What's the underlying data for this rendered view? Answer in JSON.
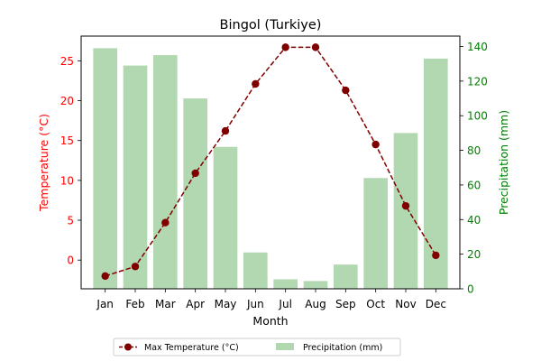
{
  "chart_data": {
    "type": "bar+line",
    "title": "Bingol (Turkiye)",
    "xlabel": "Month",
    "categories": [
      "Jan",
      "Feb",
      "Mar",
      "Apr",
      "May",
      "Jun",
      "Jul",
      "Aug",
      "Sep",
      "Oct",
      "Nov",
      "Dec"
    ],
    "temperature": {
      "name": "Max Temperature (°C)",
      "axis_label": "Temperature (°C)",
      "values": [
        -2.0,
        -0.8,
        4.7,
        10.9,
        16.2,
        22.1,
        26.7,
        26.7,
        21.3,
        14.5,
        6.8,
        0.6
      ],
      "ylim": [
        -3.6,
        28.1
      ],
      "ticks": [
        0,
        5,
        10,
        15,
        20,
        25
      ],
      "color": "#800000",
      "axis_color": "#ff0000"
    },
    "precipitation": {
      "name": "Precipitation (mm)",
      "axis_label": "Precipitation (mm)",
      "values": [
        139,
        129,
        135,
        110,
        82,
        21,
        5.5,
        4.5,
        14,
        64,
        90,
        133
      ],
      "ylim": [
        0,
        146
      ],
      "ticks": [
        0,
        20,
        40,
        60,
        80,
        100,
        120,
        140
      ],
      "color": "#b2d8b2",
      "axis_color": "#008000"
    },
    "legend": {
      "placement": "bottom-center"
    }
  }
}
